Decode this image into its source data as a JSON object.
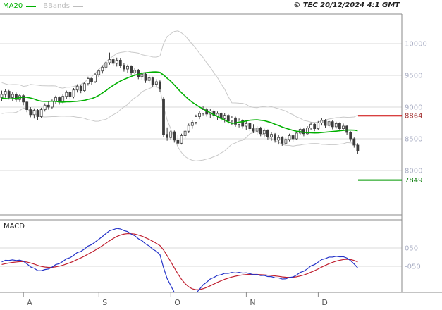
{
  "header": {
    "copyright": "© TEC 20/12/2024 4:1 GMT",
    "legend": [
      {
        "label": "MA20",
        "color": "#00B000"
      },
      {
        "label": "BBands",
        "color": "#BDBDBD"
      }
    ]
  },
  "chart_data": {
    "type": "candlestick",
    "title": "",
    "overlays": [
      "MA20",
      "BBands"
    ],
    "lower_indicator": "MACD",
    "y_axis": {
      "ticks": [
        10000,
        9500,
        9000,
        8500,
        8000
      ],
      "visible_range": [
        7300,
        10460
      ]
    },
    "x_axis": {
      "months": [
        {
          "label": "A",
          "bar": 7
        },
        {
          "label": "S",
          "bar": 28
        },
        {
          "label": "O",
          "bar": 48
        },
        {
          "label": "N",
          "bar": 69
        },
        {
          "label": "D",
          "bar": 89
        }
      ]
    },
    "levels": [
      {
        "type": "resistance",
        "value": 8864,
        "color": "#CC0000",
        "label_color": "#A33333"
      },
      {
        "type": "support",
        "value": 7849,
        "color": "#009900",
        "label_color": "#007700"
      }
    ],
    "warmup_closes": [
      9350,
      9280,
      9150,
      9050,
      8950,
      8900,
      9000,
      9120,
      9260,
      9300,
      9200,
      9080,
      8980,
      9060,
      9180,
      9280,
      9220,
      9120,
      9160
    ],
    "candles": [
      [
        9150,
        9260,
        9100,
        9200
      ],
      [
        9200,
        9280,
        9150,
        9250
      ],
      [
        9250,
        9270,
        9120,
        9150
      ],
      [
        9150,
        9240,
        9100,
        9200
      ],
      [
        9200,
        9230,
        9080,
        9120
      ],
      [
        9120,
        9210,
        9080,
        9180
      ],
      [
        9180,
        9200,
        9030,
        9080
      ],
      [
        9080,
        9100,
        8920,
        8960
      ],
      [
        8960,
        9000,
        8840,
        8880
      ],
      [
        8880,
        8980,
        8820,
        8950
      ],
      [
        8950,
        8970,
        8800,
        8850
      ],
      [
        8850,
        8990,
        8830,
        8960
      ],
      [
        8960,
        9060,
        8930,
        9030
      ],
      [
        9030,
        9100,
        8960,
        9000
      ],
      [
        9000,
        9120,
        8970,
        9090
      ],
      [
        9090,
        9180,
        9050,
        9150
      ],
      [
        9150,
        9170,
        9040,
        9080
      ],
      [
        9080,
        9200,
        9060,
        9170
      ],
      [
        9170,
        9260,
        9130,
        9230
      ],
      [
        9230,
        9250,
        9120,
        9160
      ],
      [
        9160,
        9300,
        9140,
        9270
      ],
      [
        9270,
        9360,
        9230,
        9330
      ],
      [
        9330,
        9350,
        9220,
        9260
      ],
      [
        9260,
        9400,
        9240,
        9370
      ],
      [
        9370,
        9480,
        9340,
        9450
      ],
      [
        9450,
        9470,
        9350,
        9400
      ],
      [
        9400,
        9540,
        9380,
        9510
      ],
      [
        9510,
        9600,
        9470,
        9570
      ],
      [
        9570,
        9660,
        9530,
        9630
      ],
      [
        9630,
        9730,
        9590,
        9700
      ],
      [
        9700,
        9860,
        9670,
        9750
      ],
      [
        9750,
        9790,
        9650,
        9690
      ],
      [
        9690,
        9780,
        9640,
        9740
      ],
      [
        9740,
        9770,
        9620,
        9660
      ],
      [
        9660,
        9700,
        9560,
        9600
      ],
      [
        9600,
        9670,
        9540,
        9640
      ],
      [
        9640,
        9660,
        9500,
        9540
      ],
      [
        9540,
        9620,
        9490,
        9580
      ],
      [
        9580,
        9600,
        9440,
        9480
      ],
      [
        9480,
        9560,
        9430,
        9520
      ],
      [
        9520,
        9540,
        9380,
        9420
      ],
      [
        9420,
        9500,
        9380,
        9460
      ],
      [
        9460,
        9480,
        9320,
        9360
      ],
      [
        9360,
        9440,
        9310,
        9400
      ],
      [
        9400,
        9420,
        9240,
        9280
      ],
      [
        9130,
        9160,
        8530,
        8570
      ],
      [
        8570,
        8680,
        8470,
        8520
      ],
      [
        8520,
        8640,
        8490,
        8610
      ],
      [
        8610,
        8630,
        8440,
        8480
      ],
      [
        8480,
        8560,
        8390,
        8430
      ],
      [
        8430,
        8580,
        8410,
        8550
      ],
      [
        8550,
        8640,
        8510,
        8620
      ],
      [
        8620,
        8740,
        8590,
        8710
      ],
      [
        8710,
        8790,
        8660,
        8760
      ],
      [
        8760,
        8880,
        8730,
        8850
      ],
      [
        8850,
        8940,
        8810,
        8900
      ],
      [
        8900,
        9010,
        8870,
        8960
      ],
      [
        8960,
        8990,
        8850,
        8890
      ],
      [
        8890,
        8970,
        8830,
        8940
      ],
      [
        8940,
        8960,
        8820,
        8860
      ],
      [
        8860,
        8930,
        8800,
        8900
      ],
      [
        8900,
        8920,
        8780,
        8820
      ],
      [
        8820,
        8900,
        8760,
        8870
      ],
      [
        8870,
        8890,
        8740,
        8780
      ],
      [
        8780,
        8860,
        8720,
        8830
      ],
      [
        8830,
        8850,
        8690,
        8730
      ],
      [
        8730,
        8820,
        8680,
        8790
      ],
      [
        8790,
        8810,
        8660,
        8700
      ],
      [
        8700,
        8780,
        8640,
        8740
      ],
      [
        8740,
        8760,
        8620,
        8660
      ],
      [
        8660,
        8730,
        8590,
        8620
      ],
      [
        8620,
        8700,
        8560,
        8670
      ],
      [
        8670,
        8690,
        8540,
        8580
      ],
      [
        8580,
        8660,
        8520,
        8630
      ],
      [
        8630,
        8650,
        8490,
        8530
      ],
      [
        8530,
        8610,
        8470,
        8570
      ],
      [
        8570,
        8590,
        8440,
        8480
      ],
      [
        8480,
        8560,
        8410,
        8520
      ],
      [
        8520,
        8540,
        8390,
        8430
      ],
      [
        8430,
        8520,
        8400,
        8490
      ],
      [
        8490,
        8580,
        8460,
        8550
      ],
      [
        8550,
        8570,
        8450,
        8500
      ],
      [
        8500,
        8620,
        8480,
        8590
      ],
      [
        8590,
        8680,
        8560,
        8650
      ],
      [
        8650,
        8670,
        8540,
        8580
      ],
      [
        8580,
        8700,
        8560,
        8670
      ],
      [
        8670,
        8760,
        8640,
        8730
      ],
      [
        8730,
        8750,
        8620,
        8660
      ],
      [
        8660,
        8780,
        8640,
        8750
      ],
      [
        8750,
        8830,
        8710,
        8790
      ],
      [
        8790,
        8810,
        8670,
        8710
      ],
      [
        8710,
        8800,
        8680,
        8770
      ],
      [
        8770,
        8790,
        8650,
        8690
      ],
      [
        8690,
        8770,
        8660,
        8740
      ],
      [
        8740,
        8760,
        8620,
        8660
      ],
      [
        8660,
        8740,
        8630,
        8700
      ],
      [
        8700,
        8720,
        8560,
        8600
      ],
      [
        8600,
        8620,
        8460,
        8500
      ],
      [
        8500,
        8520,
        8360,
        8400
      ],
      [
        8400,
        8430,
        8260,
        8310
      ]
    ],
    "macd_panel": {
      "label": "MACD",
      "fast": 12,
      "slow": 26,
      "signal": 9,
      "y_ticks": [
        {
          "value": 50,
          "label": "050"
        },
        {
          "value": -50,
          "label": "-050"
        }
      ]
    },
    "colors": {
      "background": "#FFFFFF",
      "grid": "#D9D9D9",
      "border": "#8A8A8A",
      "axis_label": "#A9AEC4",
      "month_label": "#555555",
      "candle": "#3C3C3C",
      "candle_up_fill": "#FFFFFF",
      "ma20": "#00B000",
      "bbands": "#C9C9C9",
      "macd_line": "#2433C8",
      "macd_signal": "#C02030"
    }
  }
}
